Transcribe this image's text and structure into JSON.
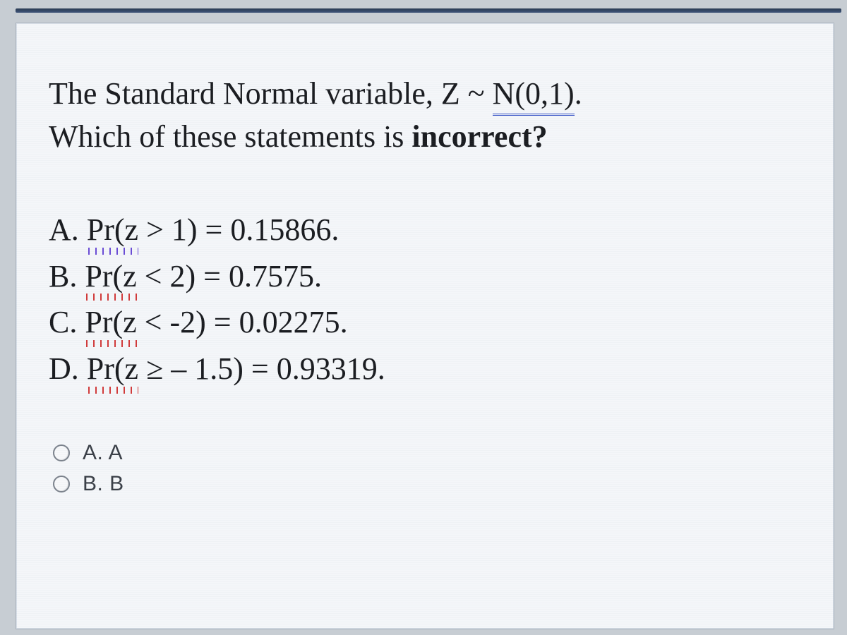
{
  "colors": {
    "outer_background": "#c7cdd3",
    "page_background": "#f4f6f9",
    "page_border": "#aab3be",
    "text": "#1a1c20",
    "topbar_gradient_from": "#2a3a52",
    "topbar_gradient_to": "#3f557a",
    "squiggle_red": "#d23a3a",
    "squiggle_purple": "#6a4bd6",
    "double_underline": "#3a56c7",
    "radio_border": "#7b828c",
    "answer_text": "#3a3f47"
  },
  "typography": {
    "question_font": "Times New Roman",
    "question_fontsize_pt": 33,
    "answers_font": "Arial",
    "answers_fontsize_pt": 22
  },
  "question": {
    "line1_part1": "The Standard Normal variable, Z ~ ",
    "line1_underlined": "N(0,1)",
    "line1_part2": ".",
    "line2_part1": "Which of these statements is ",
    "line2_bold": "incorrect?"
  },
  "statements": [
    {
      "letter": "A.",
      "pr": "Pr(z",
      "rest": " > 1) = 0.15866."
    },
    {
      "letter": "B.",
      "pr": "Pr(z",
      "rest": " < 2) = 0.7575."
    },
    {
      "letter": "C.",
      "pr": "Pr(z",
      "rest": " < -2) = 0.02275."
    },
    {
      "letter": "D.",
      "pr": "Pr(z",
      "rest": " ≥ – 1.5) = 0.93319."
    }
  ],
  "answers": [
    {
      "label": "A.  A"
    },
    {
      "label": "B.  B"
    }
  ]
}
